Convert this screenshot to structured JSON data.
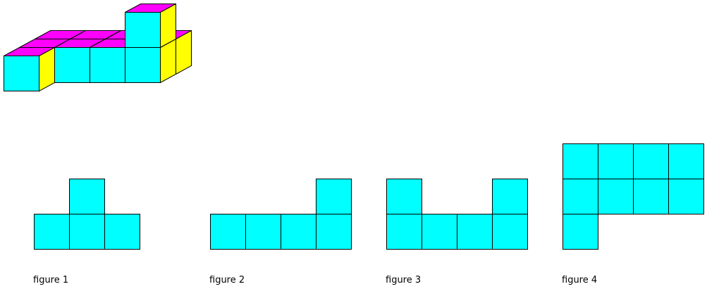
{
  "figures": [
    {
      "caption": "figure 1"
    },
    {
      "caption": "figure 2"
    },
    {
      "caption": "figure 3"
    },
    {
      "caption": "figure 4"
    }
  ]
}
